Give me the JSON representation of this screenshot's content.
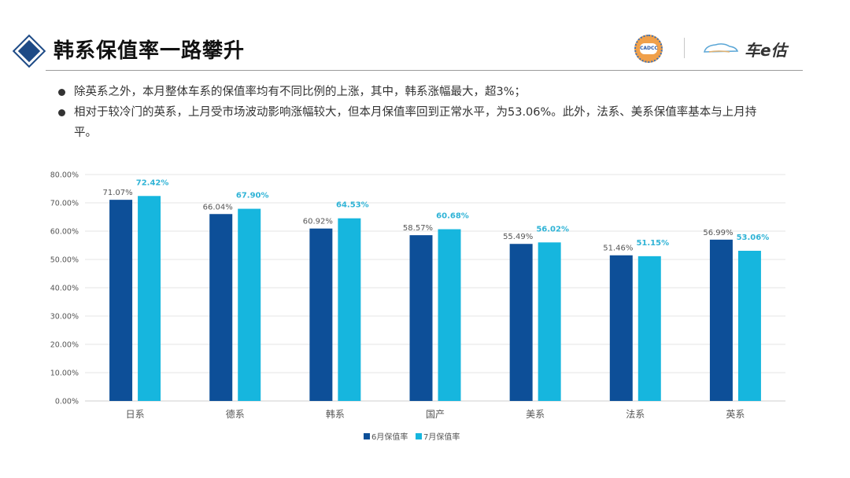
{
  "header": {
    "title": "韩系保值率一路攀升",
    "logo_cadcc": "CADCC",
    "logo_brand": "车e估"
  },
  "bullets": [
    {
      "text": "除英系之外，本月整体车系的保值率均有不同比例的上涨，其中，韩系涨幅最大，超3%；"
    },
    {
      "text": "相对于较冷门的英系，上月受市场波动影响涨幅较大，但本月保值率回到正常水平，为53.06%。此外，法系、美系保值率基本与上月持平。"
    }
  ],
  "chart_data": {
    "type": "bar",
    "title": "",
    "xlabel": "",
    "ylabel": "",
    "ylim": [
      0,
      80
    ],
    "y_ticks": [
      "0.00%",
      "10.00%",
      "20.00%",
      "30.00%",
      "40.00%",
      "50.00%",
      "60.00%",
      "70.00%",
      "80.00%"
    ],
    "categories": [
      "日系",
      "德系",
      "韩系",
      "国产",
      "美系",
      "法系",
      "英系"
    ],
    "series": [
      {
        "name": "6月保值率",
        "color": "#0d4f98",
        "values": [
          71.07,
          66.04,
          60.92,
          58.57,
          55.49,
          51.46,
          56.99
        ],
        "labels": [
          "71.07%",
          "66.04%",
          "60.92%",
          "58.57%",
          "55.49%",
          "51.46%",
          "56.99%"
        ]
      },
      {
        "name": "7月保值率",
        "color": "#16b6de",
        "values": [
          72.42,
          67.9,
          64.53,
          60.68,
          56.02,
          51.15,
          53.06
        ],
        "labels": [
          "72.42%",
          "67.90%",
          "64.53%",
          "60.68%",
          "56.02%",
          "51.15%",
          "53.06%"
        ]
      }
    ],
    "grid": true,
    "legend_position": "bottom-left"
  }
}
